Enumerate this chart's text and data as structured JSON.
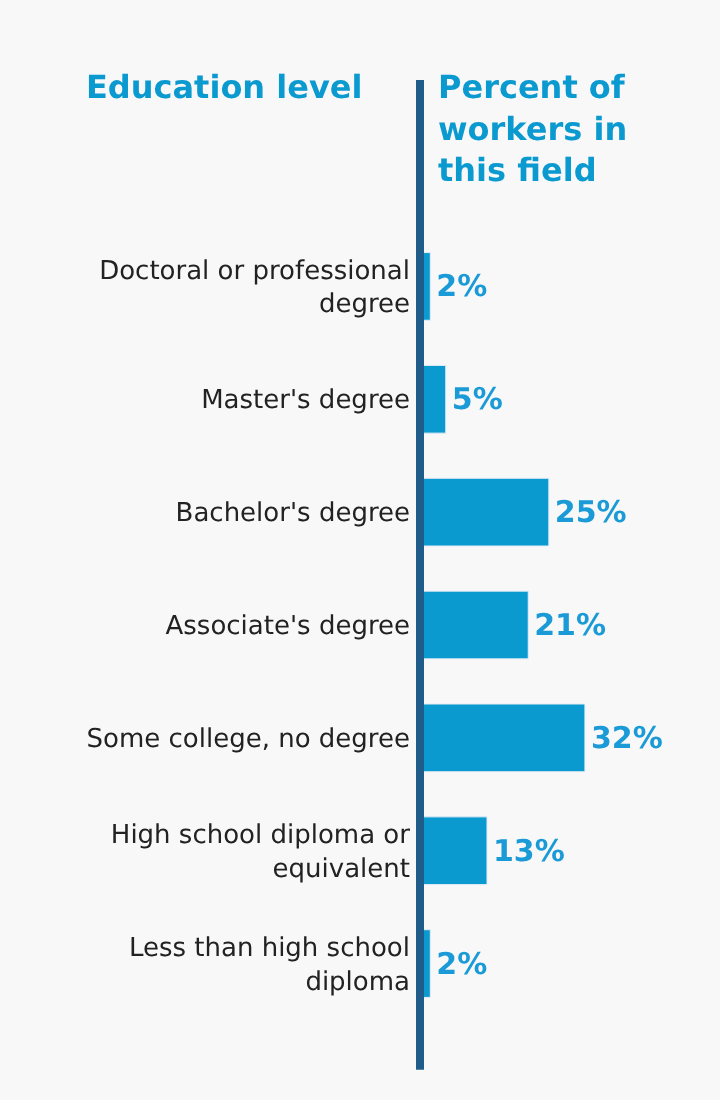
{
  "chart_data": {
    "type": "bar",
    "orientation": "horizontal",
    "ylabel": "Education level",
    "xlabel": "Percent of workers in this field",
    "categories": [
      "Doctoral or professional degree",
      "Master's degree",
      "Bachelor's degree",
      "Associate's degree",
      "Some college, no degree",
      "High school diploma or equivalent",
      "Less than high school diploma"
    ],
    "values": [
      2,
      5,
      25,
      21,
      32,
      13,
      2
    ],
    "value_labels": [
      "2%",
      "5%",
      "25%",
      "21%",
      "32%",
      "13%",
      "2%"
    ],
    "color": "#0b9ad0"
  }
}
